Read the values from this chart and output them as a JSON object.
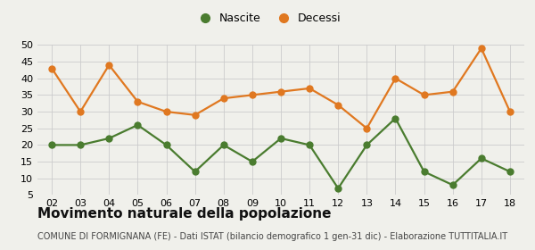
{
  "years": [
    "02",
    "03",
    "04",
    "05",
    "06",
    "07",
    "08",
    "09",
    "10",
    "11",
    "12",
    "13",
    "14",
    "15",
    "16",
    "17",
    "18"
  ],
  "nascite": [
    20,
    20,
    22,
    26,
    20,
    12,
    20,
    15,
    22,
    20,
    7,
    20,
    28,
    12,
    8,
    16,
    12
  ],
  "decessi": [
    43,
    30,
    44,
    33,
    30,
    29,
    34,
    35,
    36,
    37,
    32,
    25,
    40,
    35,
    36,
    49,
    30
  ],
  "nascite_color": "#4a7c2f",
  "decessi_color": "#e07820",
  "background_color": "#f0f0eb",
  "grid_color": "#cccccc",
  "title": "Movimento naturale della popolazione",
  "subtitle": "COMUNE DI FORMIGNANA (FE) - Dati ISTAT (bilancio demografico 1 gen-31 dic) - Elaborazione TUTTITALIA.IT",
  "ylim": [
    5,
    50
  ],
  "yticks": [
    5,
    10,
    15,
    20,
    25,
    30,
    35,
    40,
    45,
    50
  ],
  "legend_nascite": "Nascite",
  "legend_decessi": "Decessi",
  "marker_size": 5,
  "line_width": 1.6,
  "title_fontsize": 11,
  "subtitle_fontsize": 7,
  "tick_fontsize": 8
}
